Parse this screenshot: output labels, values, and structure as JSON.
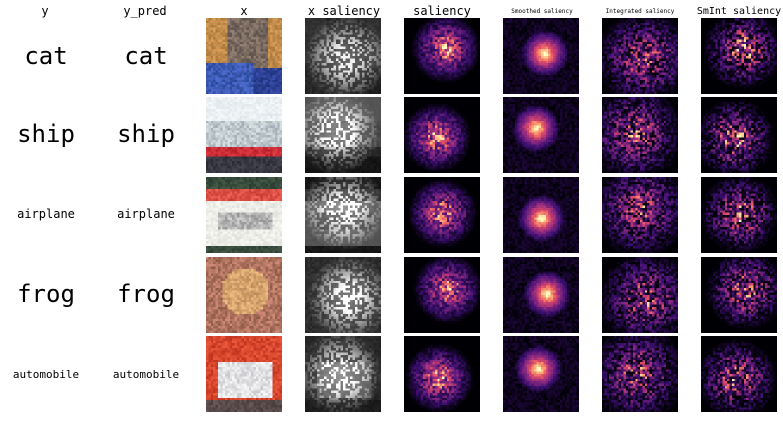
{
  "headers": {
    "y": "y",
    "y_pred": "y_pred",
    "x": "x",
    "x_saliency": "x saliency",
    "saliency": "saliency",
    "smoothed": "Smoothed saliency",
    "integrated": "Integrated saliency",
    "smint": "SmInt saliency"
  },
  "rows": [
    {
      "y": "cat",
      "y_pred": "cat",
      "image": "cat-photo"
    },
    {
      "y": "ship",
      "y_pred": "ship",
      "image": "ship-photo"
    },
    {
      "y": "airplane",
      "y_pred": "airplane",
      "image": "airplane-book-photo"
    },
    {
      "y": "frog",
      "y_pred": "frog",
      "image": "frog-photo"
    },
    {
      "y": "automobile",
      "y_pred": "automobile",
      "image": "car-photo"
    }
  ],
  "colors": {
    "background": "#ffffff",
    "heatmap_low": "#000004",
    "heatmap_mid": "#b63679",
    "heatmap_high": "#fcfdbf"
  }
}
